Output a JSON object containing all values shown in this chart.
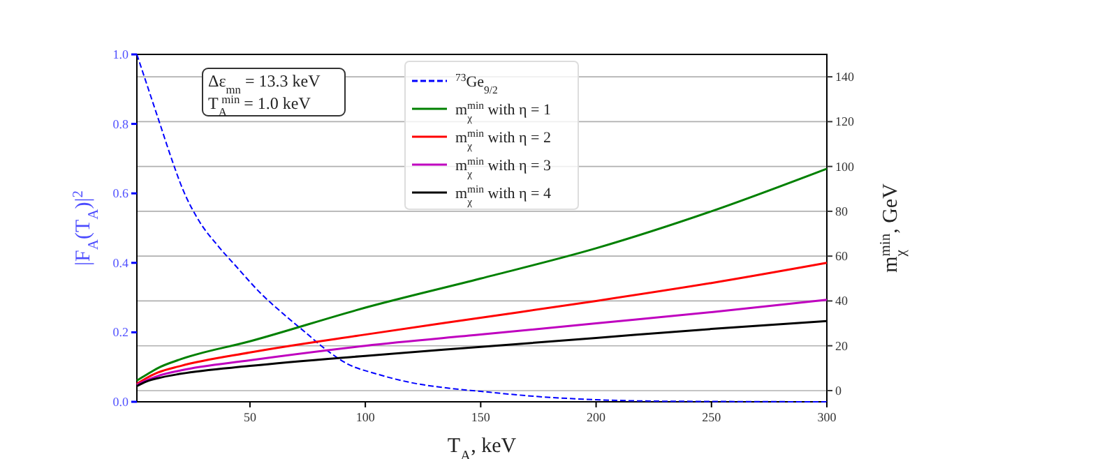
{
  "chart_data": {
    "type": "line",
    "xlabel": "T$_{A}$, keV",
    "ylabel": "|F$_{A}$(T$_{A}$)|$^{2}$",
    "y2label": "m$_{χ}$$^{min}$, GeV",
    "xlim": [
      1,
      300
    ],
    "xticks": [
      50,
      100,
      150,
      200,
      250,
      300
    ],
    "ylim": [
      0,
      1
    ],
    "yticks": [
      {
        "value": 0,
        "label": "0.0"
      },
      {
        "value": 0.2,
        "label": "0.2"
      },
      {
        "value": 0.4,
        "label": "0.4"
      },
      {
        "value": 0.6,
        "label": "0.6"
      },
      {
        "value": 0.8,
        "label": "0.8"
      },
      {
        "value": 1,
        "label": "1.0"
      }
    ],
    "y2lim": [
      -5,
      150
    ],
    "y2ticks": [
      0,
      20,
      40,
      60,
      80,
      100,
      120,
      140
    ],
    "grid": "y",
    "legend": "top",
    "annotations": [
      "Δε$_{mn}$ = 13.3 keV",
      "T$_{A}$$^{min}$ = 1.0 keV"
    ],
    "series": [
      {
        "name": "$^{73}$Ge$_{9/2}$",
        "color": "#0000ff",
        "line_style": "dashed",
        "axis": "y",
        "x": [
          1,
          6,
          11,
          16,
          21,
          28,
          36,
          44,
          55,
          65,
          74,
          83,
          92,
          105,
          120,
          135,
          150,
          175,
          200,
          225,
          250,
          300
        ],
        "values": [
          1,
          0.9,
          0.8,
          0.7,
          0.61,
          0.52,
          0.45,
          0.39,
          0.31,
          0.25,
          0.2,
          0.15,
          0.11,
          0.08,
          0.055,
          0.04,
          0.03,
          0.015,
          0.006,
          0.002,
          0.001,
          0
        ]
      },
      {
        "name": "m$_{χ}$$^{min}$ with η = 1",
        "color": "#008000",
        "axis": "y2",
        "x": [
          1,
          5,
          10,
          20,
          50,
          100,
          150,
          200,
          250,
          300
        ],
        "values": [
          4.5,
          7,
          10,
          14,
          22,
          37,
          50,
          63.5,
          80,
          99
        ]
      },
      {
        "name": "m$_{χ}$$^{min}$ with η = 2",
        "color": "#ff0000",
        "axis": "y2",
        "x": [
          1,
          5,
          10,
          20,
          50,
          100,
          150,
          200,
          250,
          300
        ],
        "values": [
          3,
          5.5,
          8,
          11,
          17,
          25,
          32.5,
          40,
          48,
          57
        ]
      },
      {
        "name": "m$_{χ}$$^{min}$ with η = 3",
        "color": "#bf00bf",
        "axis": "y2",
        "x": [
          1,
          5,
          10,
          20,
          50,
          100,
          150,
          200,
          250,
          300
        ],
        "values": [
          2.5,
          4.5,
          6.5,
          9,
          13.5,
          20,
          25,
          30,
          35,
          40.5
        ]
      },
      {
        "name": "m$_{χ}$$^{min}$ with η = 4",
        "color": "#000000",
        "axis": "y2",
        "x": [
          1,
          5,
          10,
          20,
          50,
          100,
          150,
          200,
          250,
          300
        ],
        "values": [
          2,
          4,
          5.5,
          7.5,
          11,
          15.5,
          19.5,
          23.5,
          27.5,
          31
        ]
      }
    ]
  }
}
